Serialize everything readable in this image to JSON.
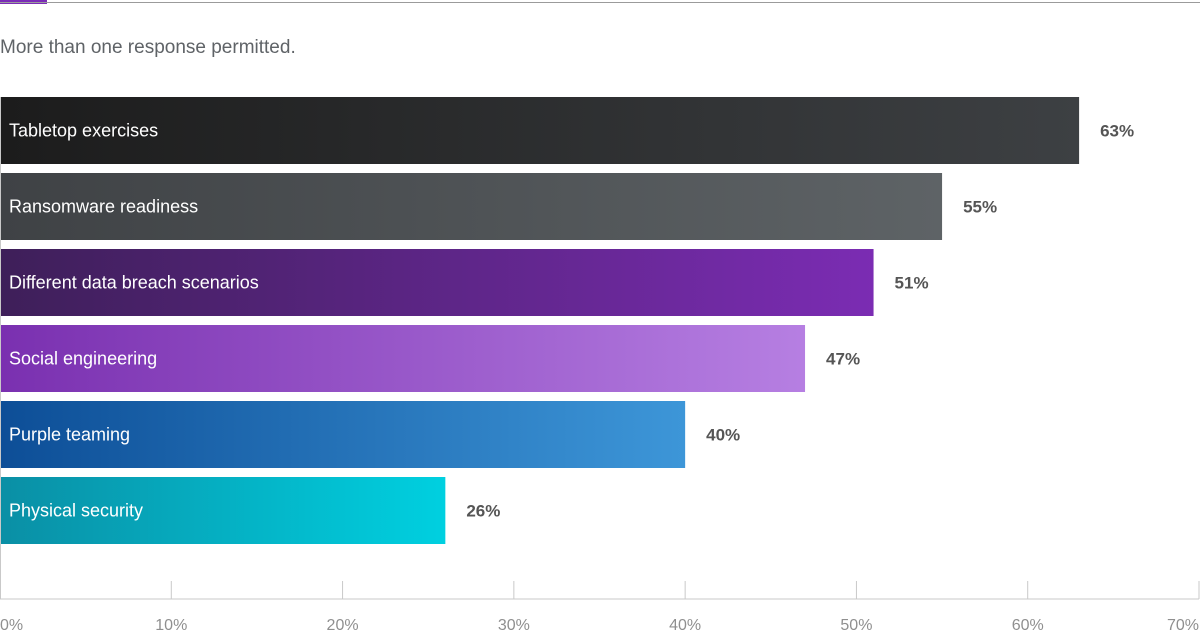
{
  "subtitle": "More than one response permitted.",
  "colors": {
    "accent": "#7b2cb8",
    "axis": "#c9c9c9",
    "tick_label": "#8f8f8f",
    "value_label": "#555555",
    "bar_label": "#ffffff"
  },
  "chart_data": {
    "type": "bar",
    "orientation": "horizontal",
    "categories": [
      "Tabletop exercises",
      "Ransomware readiness",
      "Different data breach scenarios",
      "Social engineering",
      "Purple teaming",
      "Physical security"
    ],
    "values": [
      63,
      55,
      51,
      47,
      40,
      26
    ],
    "value_labels": [
      "63%",
      "55%",
      "51%",
      "47%",
      "40%",
      "26%"
    ],
    "bar_colors": [
      [
        "#1c1c1c",
        "#3d4043"
      ],
      [
        "#3f4245",
        "#5e6366"
      ],
      [
        "#3e1f59",
        "#7b2cb3"
      ],
      [
        "#7a30b0",
        "#b67fe2"
      ],
      [
        "#0d4e97",
        "#3d96d8"
      ],
      [
        "#0a8fa5",
        "#00d0e0"
      ]
    ],
    "xlim": [
      0,
      70
    ],
    "xticks": [
      "0%",
      "10%",
      "20%",
      "30%",
      "40%",
      "50%",
      "60%",
      "70%"
    ],
    "grid": false,
    "legend": "none"
  }
}
